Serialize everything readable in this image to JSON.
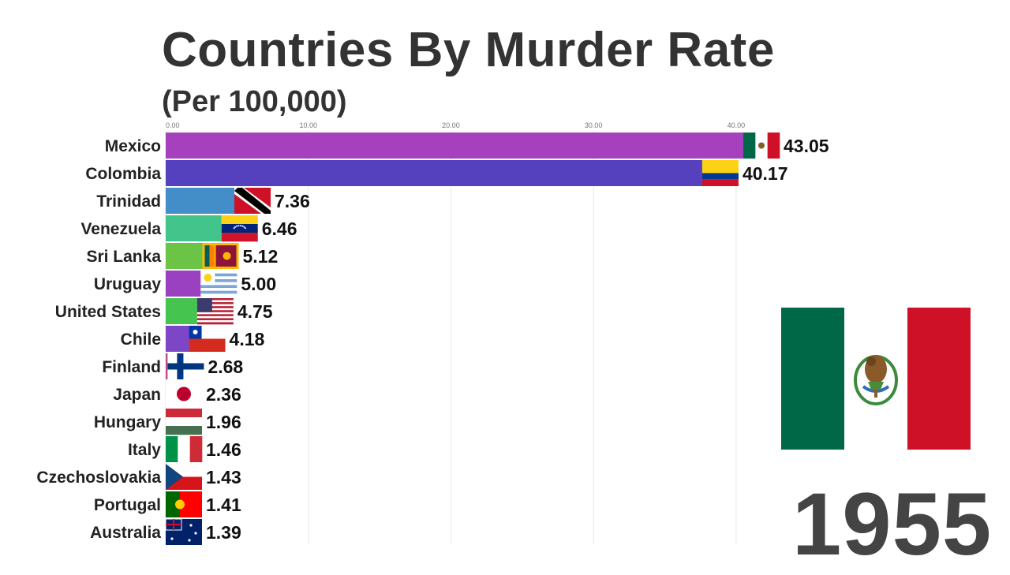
{
  "title": "Countries By Murder Rate",
  "subtitle": "(Per 100,000)",
  "year": "1955",
  "highlight_flag": "mexico-flag",
  "chart_data": {
    "type": "bar",
    "orientation": "horizontal",
    "title": "Countries By Murder Rate",
    "subtitle": "(Per 100,000)",
    "xlim": [
      0,
      43.05
    ],
    "x_ticks": [
      "0.00",
      "10.00",
      "20.00",
      "30.00",
      "40.00"
    ],
    "grid": true,
    "categories": [
      "Mexico",
      "Colombia",
      "Trinidad",
      "Venezuela",
      "Sri Lanka",
      "Uruguay",
      "United States",
      "Chile",
      "Finland",
      "Japan",
      "Hungary",
      "Italy",
      "Czechoslovakia",
      "Portugal",
      "Australia"
    ],
    "values": [
      43.05,
      40.17,
      7.36,
      6.46,
      5.12,
      5.0,
      4.75,
      4.18,
      2.68,
      2.36,
      1.96,
      1.46,
      1.43,
      1.41,
      1.39
    ],
    "value_labels": [
      "43.05",
      "40.17",
      "7.36",
      "6.46",
      "5.12",
      "5.00",
      "4.75",
      "4.18",
      "2.68",
      "2.36",
      "1.96",
      "1.46",
      "1.43",
      "1.41",
      "1.39"
    ],
    "colors": [
      "#a641bd",
      "#5540be",
      "#438ec9",
      "#42c48b",
      "#6cc447",
      "#9a41c1",
      "#45c44f",
      "#7d46c7",
      "#bc4c8c",
      "#4bbd6a",
      "#41a9c6",
      "#b84fc0",
      "#5a48c2",
      "#48c4b0",
      "#3f64c4"
    ],
    "flags": [
      "mexico-flag",
      "colombia-flag",
      "trinidad-flag",
      "venezuela-flag",
      "sri-lanka-flag",
      "uruguay-flag",
      "united-states-flag",
      "chile-flag",
      "finland-flag",
      "japan-flag",
      "hungary-flag",
      "italy-flag",
      "czechoslovakia-flag",
      "portugal-flag",
      "australia-flag"
    ]
  }
}
